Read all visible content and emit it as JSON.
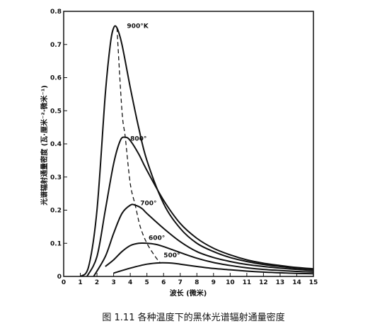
{
  "caption": "图 1.11  各种温度下的黑体光谱辐射通量密度",
  "chart_data": {
    "type": "line",
    "title": "",
    "xlabel": "波长 (微米)",
    "ylabel": "光谱辐射通量密度 (瓦·厘米⁻²·微米⁻¹)",
    "xlim": [
      0,
      15
    ],
    "ylim": [
      0,
      0.8
    ],
    "xticks": [
      "0",
      "1",
      "2",
      "3",
      "4",
      "5",
      "6",
      "7",
      "8",
      "9",
      "10",
      "11",
      "12",
      "13",
      "14",
      "15"
    ],
    "yticks": [
      "0",
      "0.1",
      "0.2",
      "0.3",
      "0.4",
      "0.5",
      "0.6",
      "0.7",
      "0.8"
    ],
    "grid": false,
    "series": [
      {
        "name": "900°K",
        "x": [
          1.0,
          1.5,
          2.0,
          2.5,
          2.8,
          3.0,
          3.2,
          3.5,
          4.0,
          4.5,
          5.0,
          6.0,
          7.0,
          8.0,
          9.0,
          10.0,
          11.0,
          12.0,
          13.0,
          14.0,
          15.0
        ],
        "y": [
          0.0,
          0.03,
          0.2,
          0.55,
          0.7,
          0.75,
          0.75,
          0.7,
          0.57,
          0.45,
          0.35,
          0.22,
          0.145,
          0.1,
          0.075,
          0.057,
          0.045,
          0.036,
          0.03,
          0.025,
          0.022
        ]
      },
      {
        "name": "800°",
        "x": [
          1.4,
          2.0,
          2.5,
          3.0,
          3.4,
          3.7,
          4.0,
          4.5,
          5.0,
          6.0,
          7.0,
          8.0,
          9.0,
          10.0,
          11.0,
          12.0,
          13.0,
          14.0,
          15.0
        ],
        "y": [
          0.0,
          0.06,
          0.2,
          0.34,
          0.41,
          0.42,
          0.41,
          0.37,
          0.32,
          0.23,
          0.16,
          0.115,
          0.085,
          0.065,
          0.05,
          0.04,
          0.033,
          0.027,
          0.023
        ]
      },
      {
        "name": "700°",
        "x": [
          1.8,
          2.5,
          3.0,
          3.5,
          4.0,
          4.3,
          4.7,
          5.0,
          6.0,
          7.0,
          8.0,
          9.0,
          10.0,
          11.0,
          12.0,
          13.0,
          14.0,
          15.0
        ],
        "y": [
          0.0,
          0.06,
          0.13,
          0.19,
          0.215,
          0.215,
          0.205,
          0.19,
          0.145,
          0.105,
          0.075,
          0.057,
          0.045,
          0.036,
          0.03,
          0.025,
          0.021,
          0.018
        ]
      },
      {
        "name": "600°",
        "x": [
          2.5,
          3.0,
          3.5,
          4.0,
          4.5,
          5.0,
          5.5,
          6.0,
          7.0,
          8.0,
          9.0,
          10.0,
          11.0,
          12.0,
          13.0,
          14.0,
          15.0
        ],
        "y": [
          0.03,
          0.05,
          0.075,
          0.093,
          0.1,
          0.1,
          0.097,
          0.09,
          0.072,
          0.055,
          0.042,
          0.033,
          0.026,
          0.021,
          0.018,
          0.015,
          0.013
        ]
      },
      {
        "name": "500°",
        "x": [
          3.0,
          4.0,
          5.0,
          5.8,
          6.5,
          7.0,
          8.0,
          9.0,
          10.0,
          11.0,
          12.0,
          13.0,
          14.0,
          15.0
        ],
        "y": [
          0.01,
          0.025,
          0.037,
          0.041,
          0.04,
          0.037,
          0.03,
          0.024,
          0.02,
          0.016,
          0.013,
          0.011,
          0.009,
          0.008
        ]
      }
    ],
    "peak_locus": {
      "x": [
        3.2,
        3.5,
        3.7,
        4.0,
        4.3,
        4.6,
        5.0,
        5.5,
        5.8
      ],
      "y": [
        0.75,
        0.5,
        0.42,
        0.28,
        0.215,
        0.15,
        0.1,
        0.06,
        0.041
      ]
    },
    "curve_labels": [
      {
        "text": "900°K",
        "x": 3.8,
        "y": 0.75
      },
      {
        "text": "800°",
        "x": 4.0,
        "y": 0.41
      },
      {
        "text": "700°",
        "x": 4.6,
        "y": 0.215
      },
      {
        "text": "600°",
        "x": 5.1,
        "y": 0.11
      },
      {
        "text": "500°",
        "x": 6.0,
        "y": 0.058
      }
    ]
  }
}
